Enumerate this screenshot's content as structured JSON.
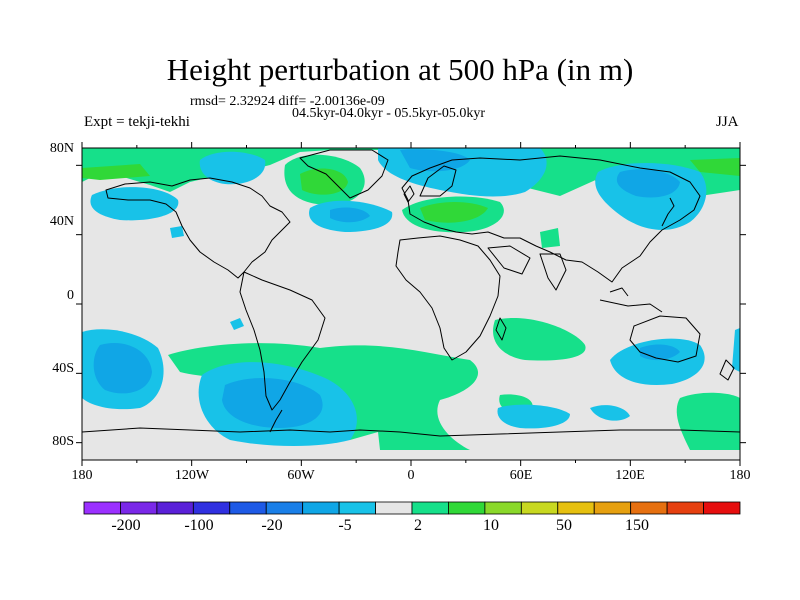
{
  "title": "Height perturbation at 500 hPa (in m)",
  "stats_line": "rmsd= 2.32924 diff= -2.00136e-09",
  "period_line": "04.5kyr-04.0kyr - 05.5kyr-05.0kyr",
  "experiment": "Expt = tekji-tekhi",
  "season": "JJA",
  "lat_labels": [
    "80N",
    "40N",
    "0",
    "40S",
    "80S"
  ],
  "lon_labels": [
    "180",
    "120W",
    "60W",
    "0",
    "60E",
    "120E",
    "180"
  ],
  "colorbar": {
    "labels": [
      "-200",
      "-100",
      "-20",
      "-5",
      "2",
      "10",
      "50",
      "150"
    ],
    "colors": [
      "#9b30ff",
      "#7a28e8",
      "#5a20d8",
      "#3030e0",
      "#1e5ae6",
      "#1a7fe8",
      "#10a6e6",
      "#18c2e8",
      "#e6e6e6",
      "#16e08a",
      "#30d838",
      "#8ad82a",
      "#c8d820",
      "#e6c010",
      "#e6a010",
      "#e67010",
      "#e64010",
      "#e60e0e"
    ]
  },
  "legend_colors": {
    "neutral": "#e6e6e6",
    "light_positive": "#16e08a",
    "positive": "#30d838",
    "light_negative": "#18c2e8",
    "negative": "#10a6e6"
  }
}
